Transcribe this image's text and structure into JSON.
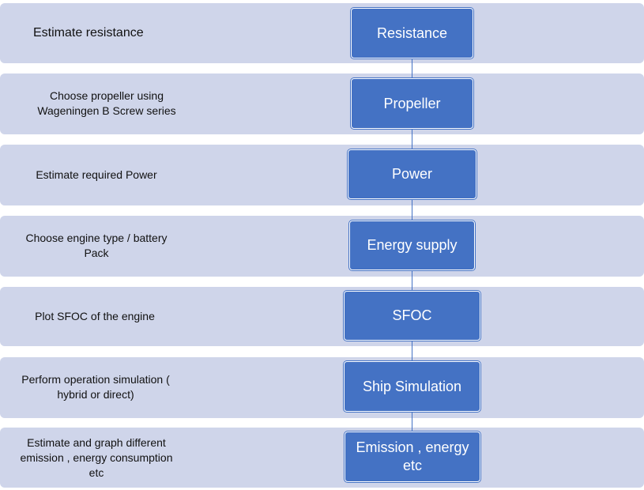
{
  "colors": {
    "band": "#cfd5ea",
    "node": "#4472c4",
    "node_text": "#ffffff",
    "band_text": "#111111"
  },
  "steps": [
    {
      "description": "Estimate resistance",
      "node": "Resistance"
    },
    {
      "description": "Choose propeller  using\nWageningen B Screw series",
      "node": "Propeller"
    },
    {
      "description": "Estimate required Power",
      "node": "Power"
    },
    {
      "description": "Choose engine type / battery\nPack",
      "node": "Energy supply"
    },
    {
      "description": "Plot SFOC of the engine",
      "node": "SFOC"
    },
    {
      "description": "Perform operation simulation (\nhybrid or direct)",
      "node": "Ship  Simulation"
    },
    {
      "description": "Estimate and graph different\nemission , energy consumption\netc",
      "node": "Emission , energy\netc"
    }
  ]
}
